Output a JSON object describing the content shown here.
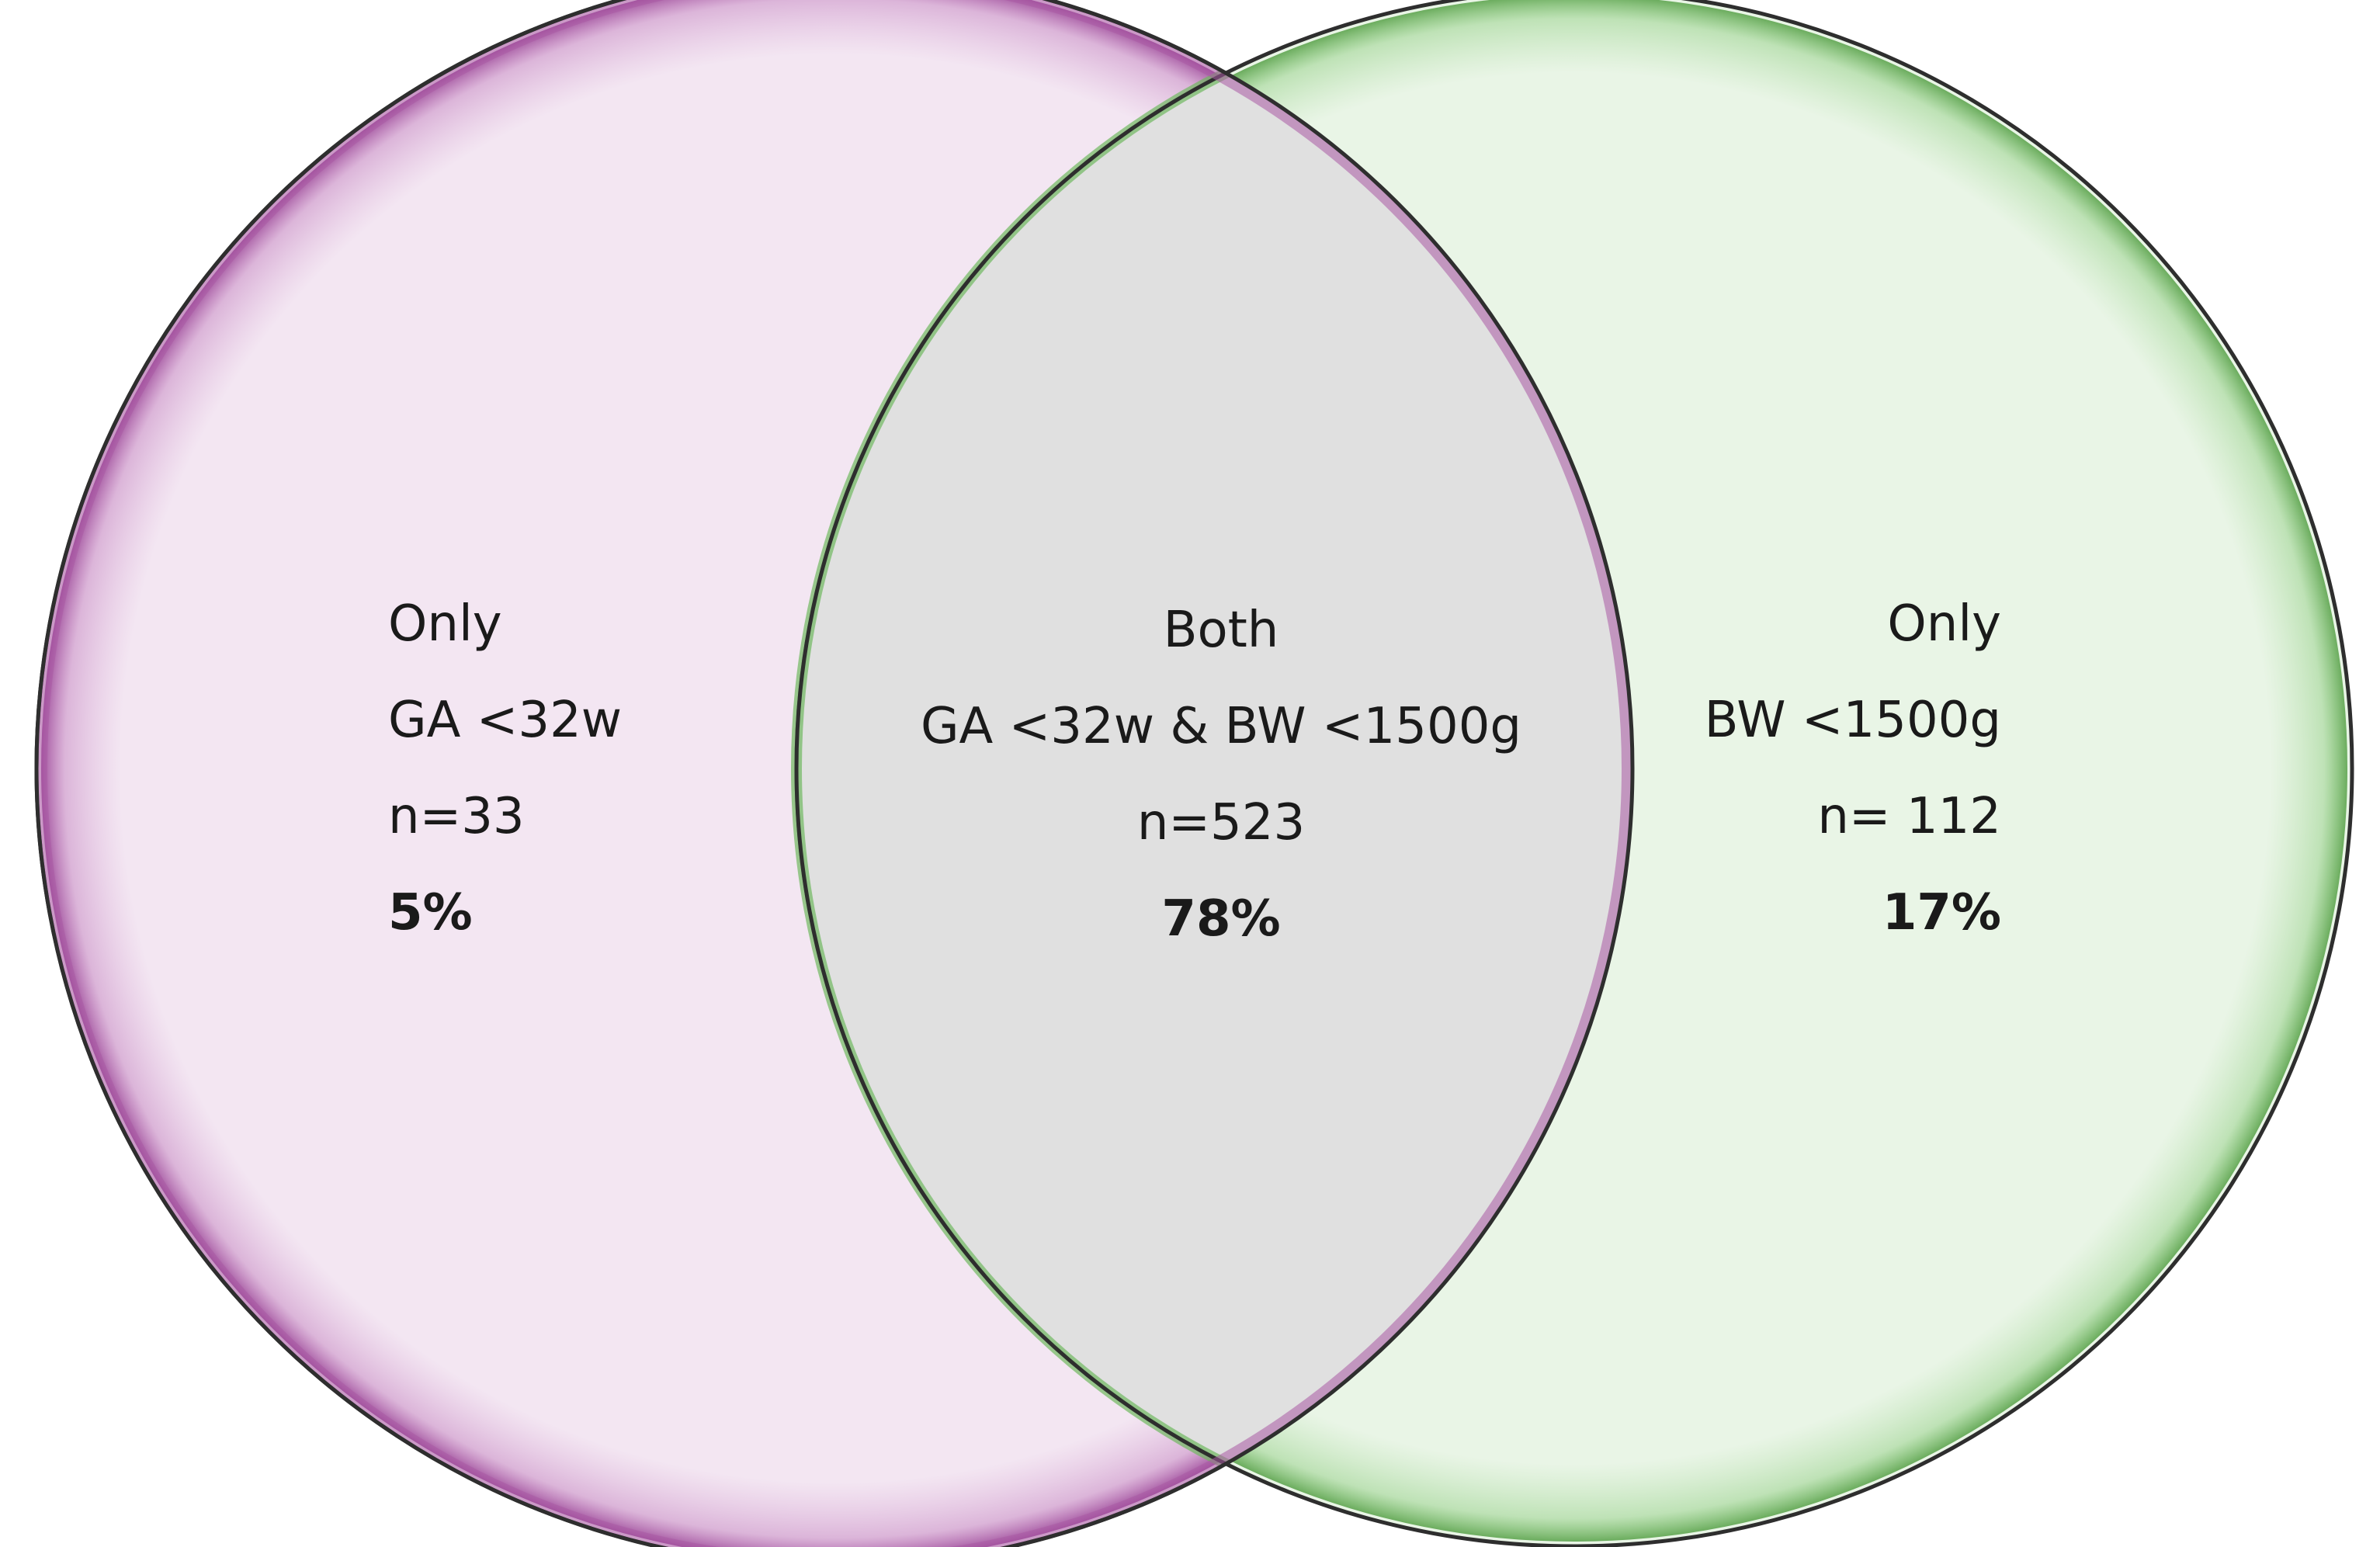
{
  "colors": {
    "left_fill": "#f3e6f2",
    "left_stroke": "#8b2a87",
    "right_fill": "#e9f5e6",
    "right_stroke": "#5aa84a",
    "overlap_fill": "#e0e0e0",
    "outline": "#2e2e2e"
  },
  "sets": {
    "left": {
      "line1": "Only",
      "line2": "GA <32w",
      "count": "n=33",
      "percent": "5%"
    },
    "both": {
      "line1": "Both",
      "line2": "GA <32w & BW <1500g",
      "count": "n=523",
      "percent": "78%"
    },
    "right": {
      "line1": "Only",
      "line2": "BW <1500g",
      "count": "n= 112",
      "percent": "17%"
    }
  }
}
